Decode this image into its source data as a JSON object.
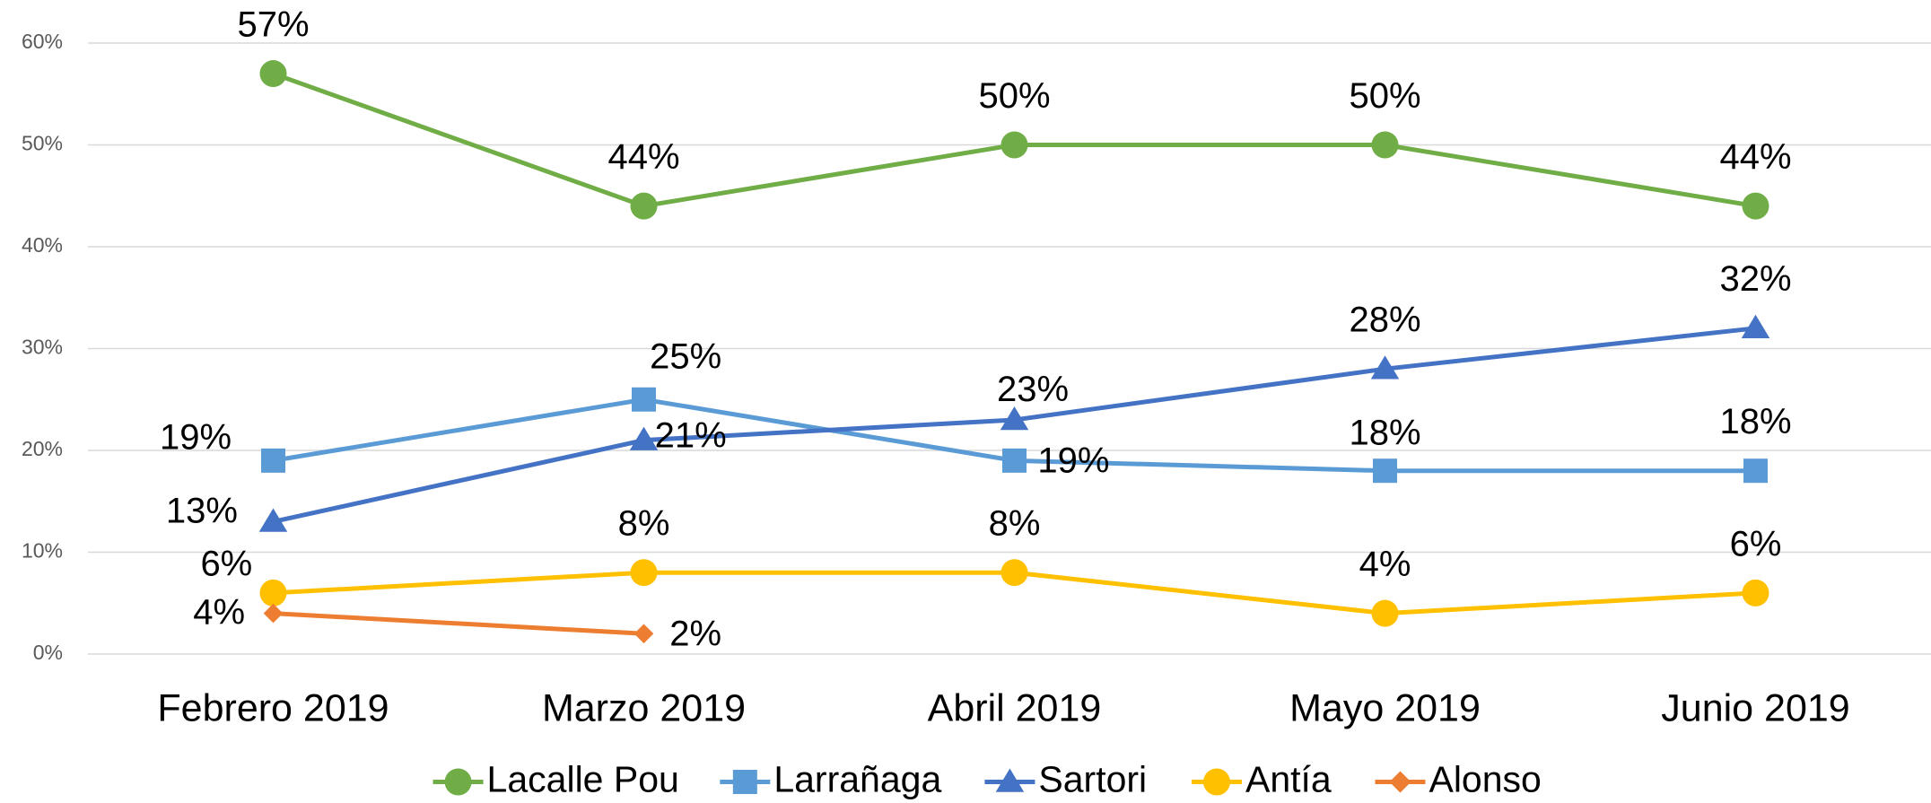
{
  "chart_data": {
    "type": "line",
    "categories": [
      "Febrero 2019",
      "Marzo 2019",
      "Abril 2019",
      "Mayo 2019",
      "Junio 2019"
    ],
    "series": [
      {
        "name": "Lacalle Pou",
        "color": "#70ad47",
        "marker": "circle",
        "values": [
          57,
          44,
          50,
          50,
          44
        ],
        "value_labels": [
          "57%",
          "44%",
          "50%",
          "50%",
          "44%"
        ]
      },
      {
        "name": "Larrañaga",
        "color": "#5b9bd5",
        "marker": "square",
        "values": [
          19,
          25,
          19,
          18,
          18
        ],
        "value_labels": [
          "19%",
          "25%",
          "19%",
          "18%",
          "18%"
        ]
      },
      {
        "name": "Sartori",
        "color": "#4472c4",
        "marker": "triangle",
        "values": [
          13,
          21,
          23,
          28,
          32
        ],
        "value_labels": [
          "13%",
          "21%",
          "23%",
          "28%",
          "32%"
        ]
      },
      {
        "name": "Antía",
        "color": "#ffc000",
        "marker": "circle",
        "values": [
          6,
          8,
          8,
          4,
          6
        ],
        "value_labels": [
          "6%",
          "8%",
          "8%",
          "4%",
          "6%"
        ]
      },
      {
        "name": "Alonso",
        "color": "#ed7d31",
        "marker": "diamond",
        "values": [
          4,
          2,
          null,
          null,
          null
        ],
        "value_labels": [
          "4%",
          "2%",
          null,
          null,
          null
        ]
      }
    ],
    "ylim": [
      0,
      60
    ],
    "yticks": [
      {
        "value": 0,
        "label": "0%"
      },
      {
        "value": 10,
        "label": "10%"
      },
      {
        "value": 20,
        "label": "20%"
      },
      {
        "value": 30,
        "label": "30%"
      },
      {
        "value": 40,
        "label": "40%"
      },
      {
        "value": 50,
        "label": "50%"
      },
      {
        "value": 60,
        "label": "60%"
      }
    ],
    "grid": true,
    "legend": "bottom"
  }
}
